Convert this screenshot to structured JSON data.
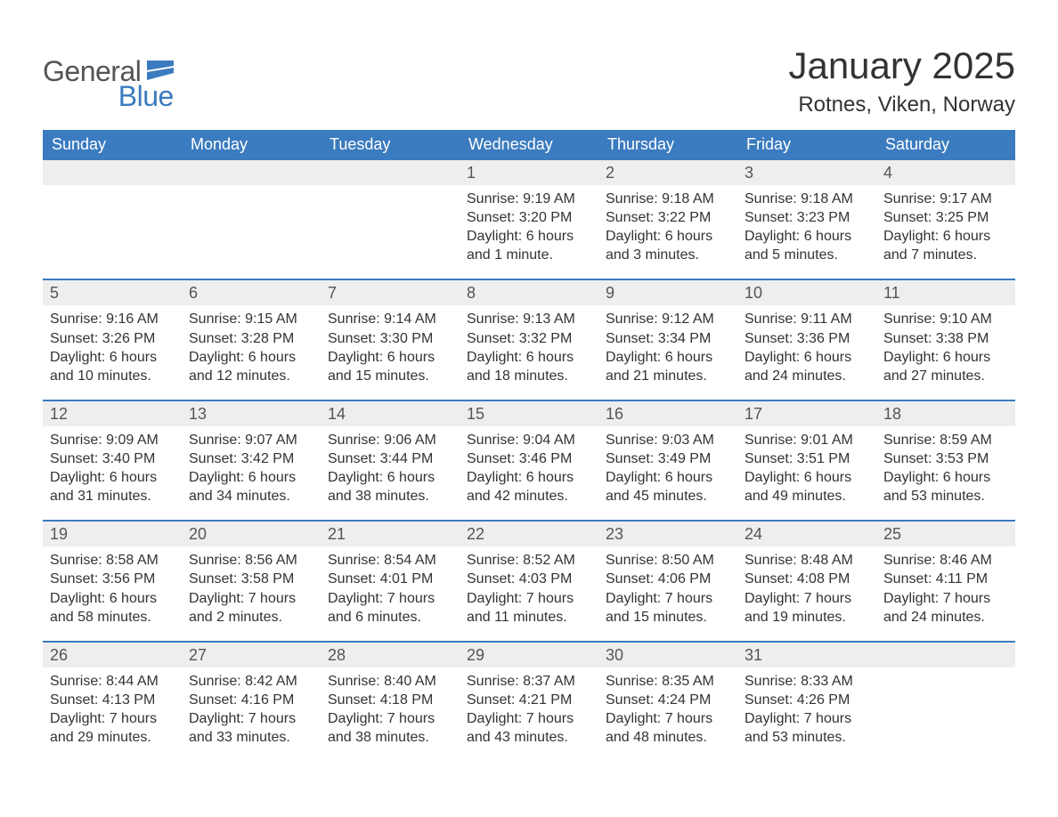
{
  "logo": {
    "word1": "General",
    "word2": "Blue"
  },
  "title": "January 2025",
  "location": "Rotnes, Viken, Norway",
  "colors": {
    "header_bg": "#3b7bbf",
    "header_text": "#ffffff",
    "daynum_bg": "#eeeeee",
    "daynum_text": "#555555",
    "body_text": "#333333",
    "rule": "#3b7bbf"
  },
  "dow": [
    "Sunday",
    "Monday",
    "Tuesday",
    "Wednesday",
    "Thursday",
    "Friday",
    "Saturday"
  ],
  "weeks": [
    [
      null,
      null,
      null,
      {
        "n": "1",
        "sunrise": "Sunrise: 9:19 AM",
        "sunset": "Sunset: 3:20 PM",
        "day1": "Daylight: 6 hours",
        "day2": "and 1 minute."
      },
      {
        "n": "2",
        "sunrise": "Sunrise: 9:18 AM",
        "sunset": "Sunset: 3:22 PM",
        "day1": "Daylight: 6 hours",
        "day2": "and 3 minutes."
      },
      {
        "n": "3",
        "sunrise": "Sunrise: 9:18 AM",
        "sunset": "Sunset: 3:23 PM",
        "day1": "Daylight: 6 hours",
        "day2": "and 5 minutes."
      },
      {
        "n": "4",
        "sunrise": "Sunrise: 9:17 AM",
        "sunset": "Sunset: 3:25 PM",
        "day1": "Daylight: 6 hours",
        "day2": "and 7 minutes."
      }
    ],
    [
      {
        "n": "5",
        "sunrise": "Sunrise: 9:16 AM",
        "sunset": "Sunset: 3:26 PM",
        "day1": "Daylight: 6 hours",
        "day2": "and 10 minutes."
      },
      {
        "n": "6",
        "sunrise": "Sunrise: 9:15 AM",
        "sunset": "Sunset: 3:28 PM",
        "day1": "Daylight: 6 hours",
        "day2": "and 12 minutes."
      },
      {
        "n": "7",
        "sunrise": "Sunrise: 9:14 AM",
        "sunset": "Sunset: 3:30 PM",
        "day1": "Daylight: 6 hours",
        "day2": "and 15 minutes."
      },
      {
        "n": "8",
        "sunrise": "Sunrise: 9:13 AM",
        "sunset": "Sunset: 3:32 PM",
        "day1": "Daylight: 6 hours",
        "day2": "and 18 minutes."
      },
      {
        "n": "9",
        "sunrise": "Sunrise: 9:12 AM",
        "sunset": "Sunset: 3:34 PM",
        "day1": "Daylight: 6 hours",
        "day2": "and 21 minutes."
      },
      {
        "n": "10",
        "sunrise": "Sunrise: 9:11 AM",
        "sunset": "Sunset: 3:36 PM",
        "day1": "Daylight: 6 hours",
        "day2": "and 24 minutes."
      },
      {
        "n": "11",
        "sunrise": "Sunrise: 9:10 AM",
        "sunset": "Sunset: 3:38 PM",
        "day1": "Daylight: 6 hours",
        "day2": "and 27 minutes."
      }
    ],
    [
      {
        "n": "12",
        "sunrise": "Sunrise: 9:09 AM",
        "sunset": "Sunset: 3:40 PM",
        "day1": "Daylight: 6 hours",
        "day2": "and 31 minutes."
      },
      {
        "n": "13",
        "sunrise": "Sunrise: 9:07 AM",
        "sunset": "Sunset: 3:42 PM",
        "day1": "Daylight: 6 hours",
        "day2": "and 34 minutes."
      },
      {
        "n": "14",
        "sunrise": "Sunrise: 9:06 AM",
        "sunset": "Sunset: 3:44 PM",
        "day1": "Daylight: 6 hours",
        "day2": "and 38 minutes."
      },
      {
        "n": "15",
        "sunrise": "Sunrise: 9:04 AM",
        "sunset": "Sunset: 3:46 PM",
        "day1": "Daylight: 6 hours",
        "day2": "and 42 minutes."
      },
      {
        "n": "16",
        "sunrise": "Sunrise: 9:03 AM",
        "sunset": "Sunset: 3:49 PM",
        "day1": "Daylight: 6 hours",
        "day2": "and 45 minutes."
      },
      {
        "n": "17",
        "sunrise": "Sunrise: 9:01 AM",
        "sunset": "Sunset: 3:51 PM",
        "day1": "Daylight: 6 hours",
        "day2": "and 49 minutes."
      },
      {
        "n": "18",
        "sunrise": "Sunrise: 8:59 AM",
        "sunset": "Sunset: 3:53 PM",
        "day1": "Daylight: 6 hours",
        "day2": "and 53 minutes."
      }
    ],
    [
      {
        "n": "19",
        "sunrise": "Sunrise: 8:58 AM",
        "sunset": "Sunset: 3:56 PM",
        "day1": "Daylight: 6 hours",
        "day2": "and 58 minutes."
      },
      {
        "n": "20",
        "sunrise": "Sunrise: 8:56 AM",
        "sunset": "Sunset: 3:58 PM",
        "day1": "Daylight: 7 hours",
        "day2": "and 2 minutes."
      },
      {
        "n": "21",
        "sunrise": "Sunrise: 8:54 AM",
        "sunset": "Sunset: 4:01 PM",
        "day1": "Daylight: 7 hours",
        "day2": "and 6 minutes."
      },
      {
        "n": "22",
        "sunrise": "Sunrise: 8:52 AM",
        "sunset": "Sunset: 4:03 PM",
        "day1": "Daylight: 7 hours",
        "day2": "and 11 minutes."
      },
      {
        "n": "23",
        "sunrise": "Sunrise: 8:50 AM",
        "sunset": "Sunset: 4:06 PM",
        "day1": "Daylight: 7 hours",
        "day2": "and 15 minutes."
      },
      {
        "n": "24",
        "sunrise": "Sunrise: 8:48 AM",
        "sunset": "Sunset: 4:08 PM",
        "day1": "Daylight: 7 hours",
        "day2": "and 19 minutes."
      },
      {
        "n": "25",
        "sunrise": "Sunrise: 8:46 AM",
        "sunset": "Sunset: 4:11 PM",
        "day1": "Daylight: 7 hours",
        "day2": "and 24 minutes."
      }
    ],
    [
      {
        "n": "26",
        "sunrise": "Sunrise: 8:44 AM",
        "sunset": "Sunset: 4:13 PM",
        "day1": "Daylight: 7 hours",
        "day2": "and 29 minutes."
      },
      {
        "n": "27",
        "sunrise": "Sunrise: 8:42 AM",
        "sunset": "Sunset: 4:16 PM",
        "day1": "Daylight: 7 hours",
        "day2": "and 33 minutes."
      },
      {
        "n": "28",
        "sunrise": "Sunrise: 8:40 AM",
        "sunset": "Sunset: 4:18 PM",
        "day1": "Daylight: 7 hours",
        "day2": "and 38 minutes."
      },
      {
        "n": "29",
        "sunrise": "Sunrise: 8:37 AM",
        "sunset": "Sunset: 4:21 PM",
        "day1": "Daylight: 7 hours",
        "day2": "and 43 minutes."
      },
      {
        "n": "30",
        "sunrise": "Sunrise: 8:35 AM",
        "sunset": "Sunset: 4:24 PM",
        "day1": "Daylight: 7 hours",
        "day2": "and 48 minutes."
      },
      {
        "n": "31",
        "sunrise": "Sunrise: 8:33 AM",
        "sunset": "Sunset: 4:26 PM",
        "day1": "Daylight: 7 hours",
        "day2": "and 53 minutes."
      },
      null
    ]
  ]
}
